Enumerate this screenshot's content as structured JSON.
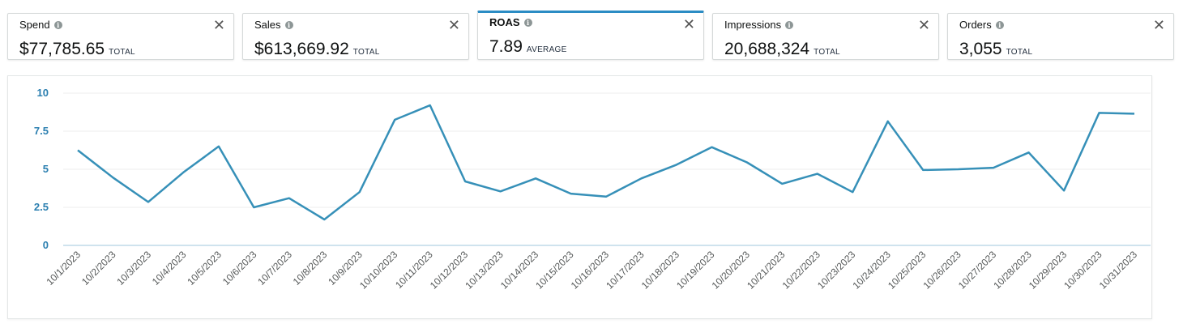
{
  "metrics": [
    {
      "label": "Spend",
      "value": "$77,785.65",
      "aggregation": "TOTAL",
      "selected": false
    },
    {
      "label": "Sales",
      "value": "$613,669.92",
      "aggregation": "TOTAL",
      "selected": false
    },
    {
      "label": "ROAS",
      "value": "7.89",
      "aggregation": "AVERAGE",
      "selected": true
    },
    {
      "label": "Impressions",
      "value": "20,688,324",
      "aggregation": "TOTAL",
      "selected": false
    },
    {
      "label": "Orders",
      "value": "3,055",
      "aggregation": "TOTAL",
      "selected": false
    }
  ],
  "icons": {
    "info": "info-icon",
    "close": "close-icon",
    "close_glyph": "✕",
    "info_glyph": "i"
  },
  "colors": {
    "accent": "#2b8cc4",
    "line": "#3690b8",
    "axis_label": "#2b7fb0"
  },
  "chart_data": {
    "type": "line",
    "categories": [
      "10/1/2023",
      "10/2/2023",
      "10/3/2023",
      "10/4/2023",
      "10/5/2023",
      "10/6/2023",
      "10/7/2023",
      "10/8/2023",
      "10/9/2023",
      "10/10/2023",
      "10/11/2023",
      "10/12/2023",
      "10/13/2023",
      "10/14/2023",
      "10/15/2023",
      "10/16/2023",
      "10/17/2023",
      "10/18/2023",
      "10/19/2023",
      "10/20/2023",
      "10/21/2023",
      "10/22/2023",
      "10/23/2023",
      "10/24/2023",
      "10/25/2023",
      "10/26/2023",
      "10/27/2023",
      "10/28/2023",
      "10/29/2023",
      "10/30/2023",
      "10/31/2023"
    ],
    "series": [
      {
        "values": [
          6.25,
          4.45,
          2.85,
          4.8,
          6.5,
          2.5,
          3.1,
          1.7,
          3.5,
          8.25,
          9.2,
          4.2,
          3.55,
          4.4,
          3.4,
          3.2,
          4.4,
          5.3,
          6.45,
          5.45,
          4.05,
          4.7,
          3.5,
          8.15,
          4.95,
          5.0,
          5.1,
          6.1,
          3.6,
          8.7,
          8.65
        ]
      }
    ],
    "yticks": [
      "0",
      "2.5",
      "5",
      "7.5",
      "10"
    ],
    "ylim": [
      0,
      10
    ],
    "grid": true
  }
}
